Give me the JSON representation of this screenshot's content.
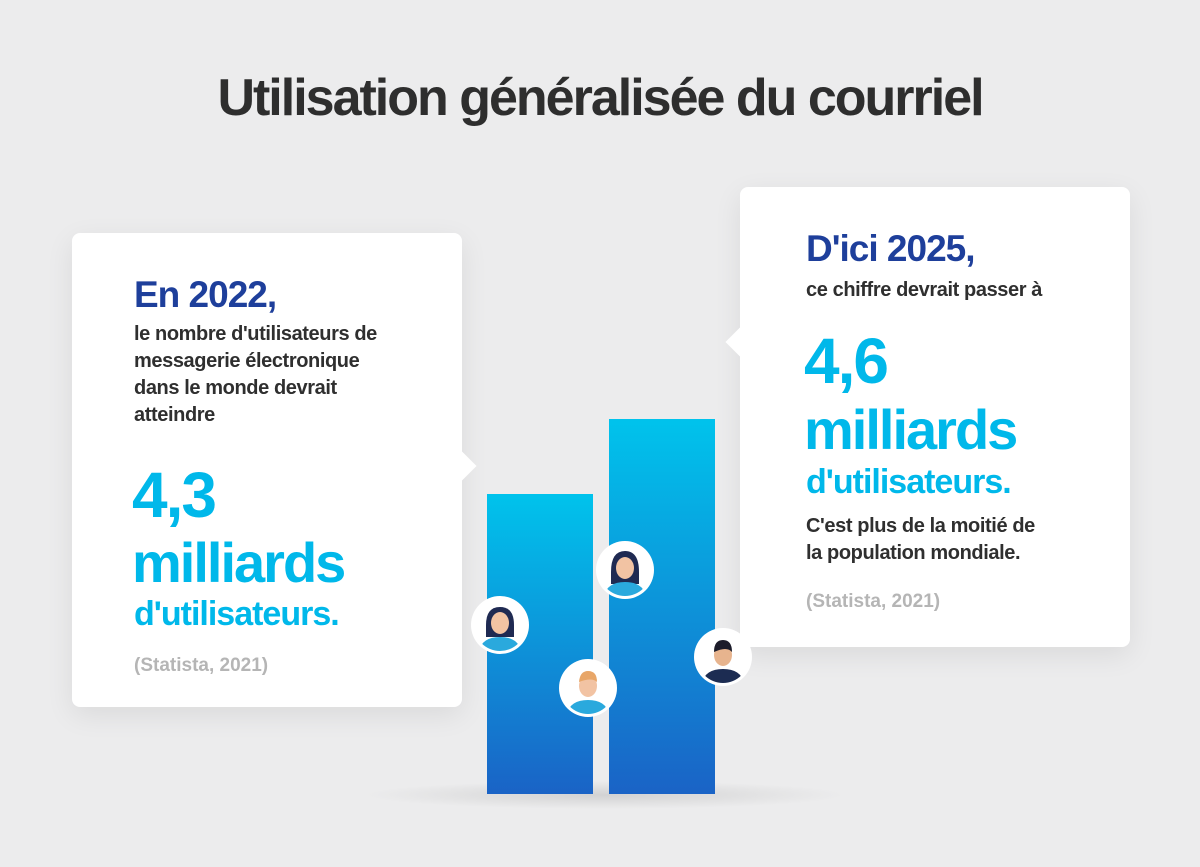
{
  "title": "Utilisation généralisée du courriel",
  "left_card": {
    "lead": "En 2022,",
    "body": [
      "le nombre d'utilisateurs de",
      "messagerie électronique",
      "dans le monde devrait",
      "atteindre"
    ],
    "number": "4,3",
    "unit_word": "milliards",
    "unit_sub": "d'utilisateurs.",
    "source": "(Statista, 2021)"
  },
  "right_card": {
    "lead": "D'ici 2025,",
    "body": "ce chiffre devrait passer à",
    "number": "4,6",
    "unit_word": "milliards",
    "unit_sub": "d'utilisateurs.",
    "note": [
      "C'est plus de la moitié de",
      "la population mondiale."
    ],
    "source": "(Statista, 2021)"
  },
  "chart_data": {
    "type": "bar",
    "categories": [
      "2022",
      "2025"
    ],
    "values": [
      4.3,
      4.6
    ],
    "ylim": [
      3.1,
      4.9
    ],
    "title": "",
    "xlabel": "",
    "ylabel": "",
    "grid": false,
    "colors": {
      "bar_top": "#00c3ec",
      "bar_bottom": "#1a63c6"
    }
  },
  "icons": [
    "woman-avatar-icon",
    "man-avatar-icon",
    "woman-avatar-icon",
    "man-dark-avatar-icon"
  ]
}
